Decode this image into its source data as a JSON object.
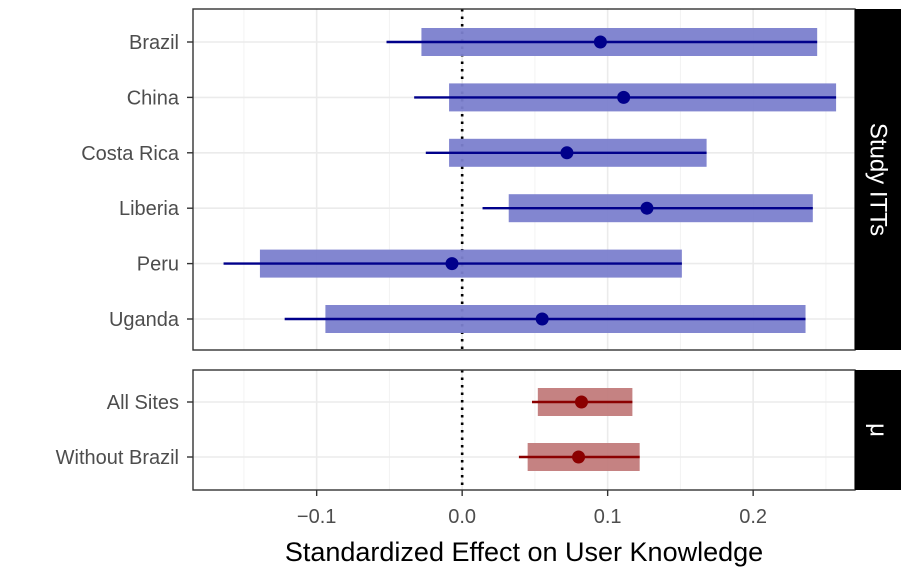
{
  "chart_data": {
    "type": "forest",
    "xlabel": "Standardized Effect on User Knowledge",
    "xlim": [
      -0.185,
      0.27
    ],
    "x_ticks": [
      {
        "value": -0.1,
        "label": "−0.1"
      },
      {
        "value": 0.0,
        "label": "0.0"
      },
      {
        "value": 0.1,
        "label": "0.1"
      },
      {
        "value": 0.2,
        "label": "0.2"
      }
    ],
    "reference_line": 0.0,
    "grid": true,
    "panels": [
      {
        "strip_label": "Study ITTs",
        "color_bar": "#7b7fcd",
        "color_line": "#00008b",
        "rows": [
          {
            "label": "Brazil",
            "estimate": 0.095,
            "ci_inner": [
              -0.028,
              0.244
            ],
            "ci_outer": [
              -0.052,
              0.244
            ]
          },
          {
            "label": "China",
            "estimate": 0.111,
            "ci_inner": [
              -0.009,
              0.257
            ],
            "ci_outer": [
              -0.033,
              0.257
            ]
          },
          {
            "label": "Costa Rica",
            "estimate": 0.072,
            "ci_inner": [
              -0.009,
              0.168
            ],
            "ci_outer": [
              -0.025,
              0.168
            ]
          },
          {
            "label": "Liberia",
            "estimate": 0.127,
            "ci_inner": [
              0.032,
              0.241
            ],
            "ci_outer": [
              0.014,
              0.241
            ]
          },
          {
            "label": "Peru",
            "estimate": -0.007,
            "ci_inner": [
              -0.139,
              0.151
            ],
            "ci_outer": [
              -0.164,
              0.151
            ]
          },
          {
            "label": "Uganda",
            "estimate": 0.055,
            "ci_inner": [
              -0.094,
              0.236
            ],
            "ci_outer": [
              -0.122,
              0.236
            ]
          }
        ]
      },
      {
        "strip_label": "μ",
        "color_bar": "#c27b7b",
        "color_line": "#8b0000",
        "rows": [
          {
            "label": "All Sites",
            "estimate": 0.082,
            "ci_inner": [
              0.052,
              0.117
            ],
            "ci_outer": [
              0.048,
              0.117
            ]
          },
          {
            "label": "Without Brazil",
            "estimate": 0.08,
            "ci_inner": [
              0.045,
              0.122
            ],
            "ci_outer": [
              0.039,
              0.122
            ]
          }
        ]
      }
    ]
  }
}
